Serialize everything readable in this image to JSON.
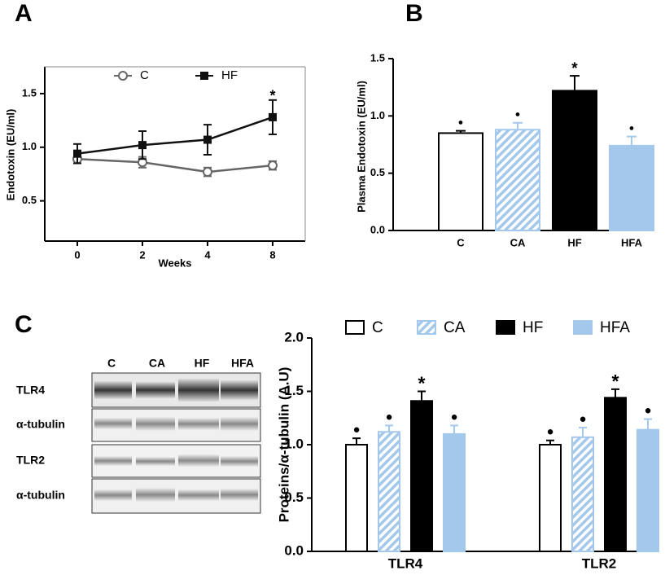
{
  "chart_data": [
    {
      "type": "line",
      "panel": "A",
      "xlabel": "Weeks",
      "ylabel": "Endotoxin (EU/ml)",
      "categories": [
        "0",
        "2",
        "4",
        "8"
      ],
      "series": [
        {
          "name": "C",
          "color": "#666666",
          "marker": "circle",
          "values": [
            0.89,
            0.86,
            0.77,
            0.83
          ],
          "errors": [
            0.04,
            0.05,
            0.04,
            0.04
          ],
          "sig_labels": [
            null,
            null,
            null,
            null
          ]
        },
        {
          "name": "HF",
          "color": "#111111",
          "marker": "square",
          "values": [
            0.94,
            1.02,
            1.07,
            1.28
          ],
          "errors": [
            0.09,
            0.13,
            0.14,
            0.16
          ],
          "sig_labels": [
            null,
            null,
            null,
            "*"
          ]
        }
      ],
      "ylim": [
        0.125,
        1.75
      ],
      "yticks": [
        {
          "value": 0.5,
          "label": "0.5"
        },
        {
          "value": 1.0,
          "label": "1.0"
        },
        {
          "value": 1.5,
          "label": "1.5"
        }
      ],
      "frame": true
    },
    {
      "type": "bar",
      "panel": "B",
      "ylabel": "Plasma Endotoxin (EU/ml)",
      "categories": [
        "C",
        "CA",
        "HF",
        "HFA"
      ],
      "values": [
        0.85,
        0.88,
        1.22,
        0.74
      ],
      "errors": [
        0.02,
        0.06,
        0.13,
        0.08
      ],
      "sig_labels": [
        "●",
        "●",
        "*",
        "●"
      ],
      "colors": [
        "#ffffff",
        "#a4c8ec",
        "#000000",
        "#a4c8ec"
      ],
      "hatched": [
        false,
        true,
        false,
        false
      ],
      "ylim": [
        0,
        1.5
      ],
      "yticks": [
        {
          "value": 0,
          "label": "0.0"
        },
        {
          "value": 0.5,
          "label": "0.5"
        },
        {
          "value": 1.0,
          "label": "1.0"
        },
        {
          "value": 1.5,
          "label": "1.5"
        }
      ],
      "frame": false
    },
    {
      "type": "grouped_bar",
      "panel": "C",
      "ylabel": "Proteins/α-tubulin (A.U)",
      "categories": [
        "TLR4",
        "TLR2"
      ],
      "series": [
        {
          "name": "C",
          "color": "#ffffff",
          "hatched": false,
          "values": [
            1.0,
            1.0
          ],
          "errors": [
            0.06,
            0.04
          ],
          "sig_labels": [
            "●",
            "●"
          ]
        },
        {
          "name": "CA",
          "color": "#a4c8ec",
          "hatched": true,
          "values": [
            1.12,
            1.07
          ],
          "errors": [
            0.06,
            0.09
          ],
          "sig_labels": [
            "●",
            "●"
          ]
        },
        {
          "name": "HF",
          "color": "#000000",
          "hatched": false,
          "values": [
            1.41,
            1.44
          ],
          "errors": [
            0.09,
            0.08
          ],
          "sig_labels": [
            "*",
            "*"
          ]
        },
        {
          "name": "HFA",
          "color": "#a4c8ec",
          "hatched": false,
          "values": [
            1.1,
            1.14
          ],
          "errors": [
            0.08,
            0.1
          ],
          "sig_labels": [
            "●",
            "●"
          ]
        }
      ],
      "ylim": [
        0,
        2
      ],
      "yticks": [
        {
          "value": 0,
          "label": "0.0"
        },
        {
          "value": 0.5,
          "label": "0.5"
        },
        {
          "value": 1.0,
          "label": "1.0"
        },
        {
          "value": 1.5,
          "label": "1.5"
        },
        {
          "value": 2.0,
          "label": "2.0"
        }
      ],
      "frame": false
    }
  ],
  "blot": {
    "lanes": [
      "C",
      "CA",
      "HF",
      "HFA"
    ],
    "rows": [
      "TLR4",
      "α-tubulin",
      "TLR2",
      "α-tubulin"
    ]
  }
}
